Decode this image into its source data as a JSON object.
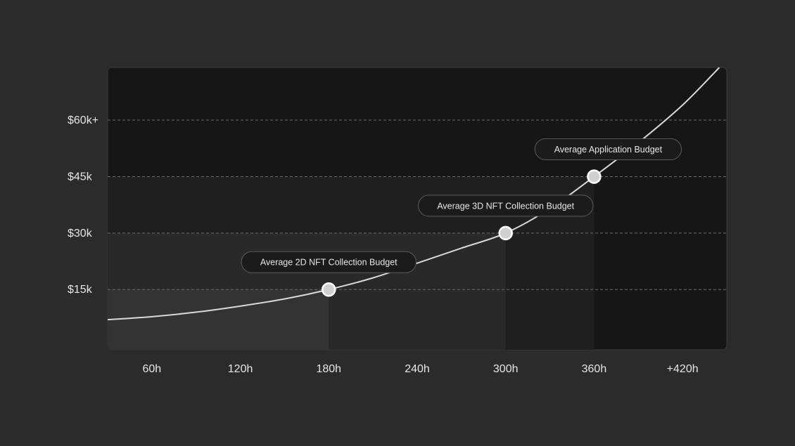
{
  "colors": {
    "background": "#2b2b2b",
    "panel": "#161616",
    "band_lowest": "#333333",
    "band_2": "#292929",
    "band_3": "#1f1f1f",
    "curve": "#d9d9d9",
    "gridline": "#6b6b6b",
    "text": "#e6e6e6",
    "label_bg": "#1b1b1b",
    "label_border": "#5a5a5a",
    "marker_fill": "#d0d0d0",
    "marker_stroke": "#ffffff"
  },
  "chart_data": {
    "type": "line",
    "title": "",
    "xlabel": "",
    "ylabel": "",
    "x_ticks": [
      {
        "value": 60,
        "label": "60h"
      },
      {
        "value": 120,
        "label": "120h"
      },
      {
        "value": 180,
        "label": "180h"
      },
      {
        "value": 240,
        "label": "240h"
      },
      {
        "value": 300,
        "label": "300h"
      },
      {
        "value": 360,
        "label": "360h"
      },
      {
        "value": 420,
        "label": "+420h"
      }
    ],
    "y_ticks": [
      {
        "value": 15000,
        "label": "$15k"
      },
      {
        "value": 30000,
        "label": "$30k"
      },
      {
        "value": 45000,
        "label": "$45k"
      },
      {
        "value": 60000,
        "label": "$60k+"
      }
    ],
    "xlim": [
      30,
      450
    ],
    "ylim": [
      -1000,
      74000
    ],
    "grid": "horizontal-dashed",
    "curve": {
      "x": [
        30,
        60,
        90,
        120,
        150,
        180,
        210,
        240,
        270,
        300,
        330,
        360,
        390,
        420,
        445
      ],
      "y": [
        7000,
        7800,
        9000,
        10600,
        12500,
        15000,
        18100,
        22000,
        26000,
        30000,
        36500,
        45000,
        54000,
        64000,
        74000
      ]
    },
    "bands": [
      {
        "x_end": 180,
        "y_top": 15000
      },
      {
        "x_end": 300,
        "y_top": 30000
      },
      {
        "x_end": 360,
        "y_top": 45000
      }
    ],
    "annotations": [
      {
        "x": 180,
        "y": 15000,
        "label": "Average 2D NFT Collection Budget"
      },
      {
        "x": 300,
        "y": 30000,
        "label": "Average 3D NFT Collection Budget"
      },
      {
        "x": 360,
        "y": 45000,
        "label": "Average Application Budget"
      }
    ]
  }
}
